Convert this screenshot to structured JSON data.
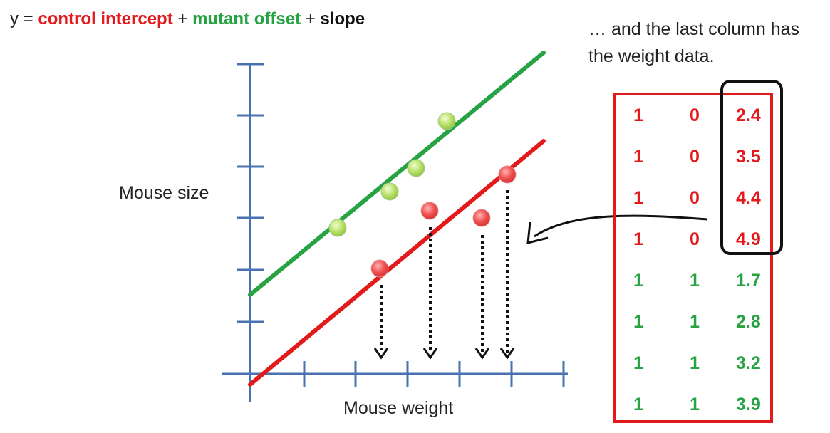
{
  "equation": {
    "prefix": "y = ",
    "term1": "control intercept",
    "plus1": " + ",
    "term2": "mutant offset",
    "plus2": " + ",
    "term3": "slope"
  },
  "note": {
    "line1": "… and the last column has",
    "line2": "the weight data."
  },
  "axes": {
    "ylabel": "Mouse size",
    "xlabel": "Mouse weight"
  },
  "colors": {
    "control": "#e31a1c",
    "mutant": "#27a344",
    "axis": "#4a72b0",
    "arrow": "#111111"
  },
  "design_matrix": [
    {
      "c1": "1",
      "c2": "0",
      "weight": "2.4",
      "group": "control"
    },
    {
      "c1": "1",
      "c2": "0",
      "weight": "3.5",
      "group": "control"
    },
    {
      "c1": "1",
      "c2": "0",
      "weight": "4.4",
      "group": "control"
    },
    {
      "c1": "1",
      "c2": "0",
      "weight": "4.9",
      "group": "control"
    },
    {
      "c1": "1",
      "c2": "1",
      "weight": "1.7",
      "group": "mutant"
    },
    {
      "c1": "1",
      "c2": "1",
      "weight": "2.8",
      "group": "mutant"
    },
    {
      "c1": "1",
      "c2": "1",
      "weight": "3.2",
      "group": "mutant"
    },
    {
      "c1": "1",
      "c2": "1",
      "weight": "3.9",
      "group": "mutant"
    }
  ]
}
